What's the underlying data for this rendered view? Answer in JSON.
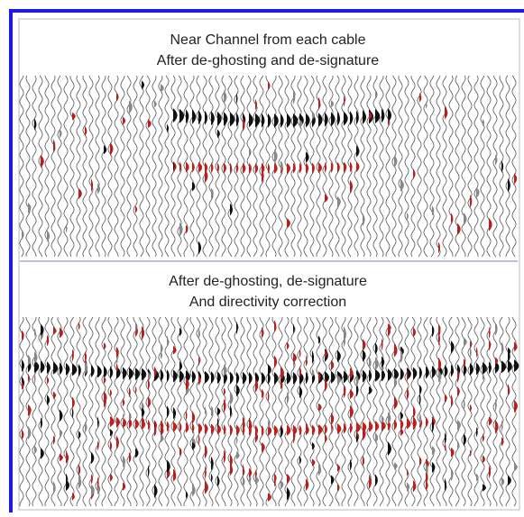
{
  "panels": [
    {
      "title_lines": [
        "Near Channel  from each cable",
        "After de-ghosting and de-signature"
      ]
    },
    {
      "title_lines": [
        "After de-ghosting, de-signature",
        "And directivity correction"
      ]
    }
  ]
}
